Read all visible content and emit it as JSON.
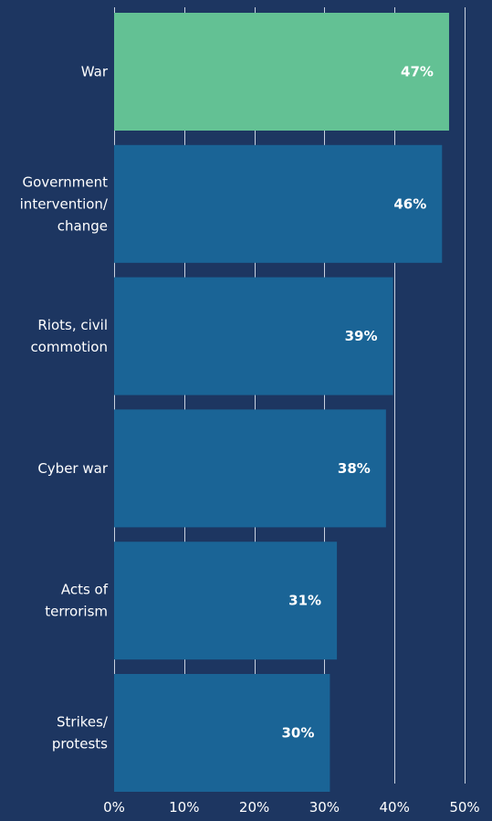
{
  "chart_data": {
    "type": "bar",
    "orientation": "horizontal",
    "categories": [
      [
        "War"
      ],
      [
        "Government",
        "intervention/",
        "change"
      ],
      [
        "Riots, civil",
        "commotion"
      ],
      [
        "Cyber war"
      ],
      [
        "Acts of",
        "terrorism"
      ],
      [
        "Strikes/",
        "protests"
      ]
    ],
    "values": [
      47,
      46,
      39,
      38,
      31,
      30
    ],
    "value_labels": [
      "47%",
      "46%",
      "39%",
      "38%",
      "31%",
      "30%"
    ],
    "xlim": [
      0,
      50
    ],
    "xticks": [
      0,
      10,
      20,
      30,
      40,
      50
    ],
    "xtick_labels": [
      "0%",
      "10%",
      "20%",
      "30%",
      "40%",
      "50%"
    ],
    "grid": true,
    "colors": {
      "background": "#1d3661",
      "highlight_bar": "#63c194",
      "bar": "#1a6496",
      "gridline": "#c9d2e0",
      "text": "#ffffff"
    },
    "highlight_index": 0
  }
}
